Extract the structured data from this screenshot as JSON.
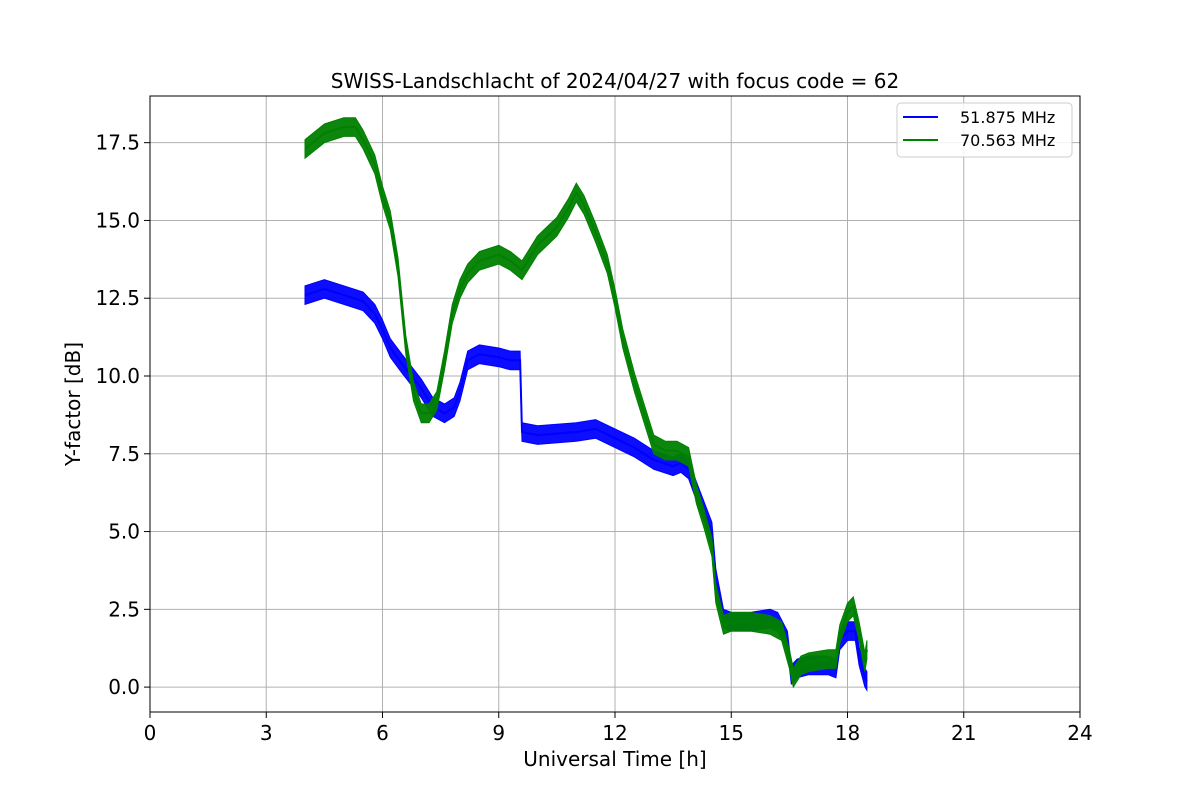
{
  "chart_data": {
    "type": "line",
    "title": "SWISS-Landschlacht of 2024/04/27 with focus code = 62",
    "xlabel": "Universal Time [h]",
    "ylabel": "Y-factor [dB]",
    "xlim": [
      0,
      24
    ],
    "ylim": [
      -0.8,
      19
    ],
    "xticks": [
      0,
      3,
      6,
      9,
      12,
      15,
      18,
      21,
      24
    ],
    "xtick_labels": [
      "0",
      "3",
      "6",
      "9",
      "12",
      "15",
      "18",
      "21",
      "24"
    ],
    "yticks": [
      0,
      2.5,
      5,
      7.5,
      10,
      12.5,
      15,
      17.5
    ],
    "ytick_labels": [
      "0.0",
      "2.5",
      "5.0",
      "7.5",
      "10.0",
      "12.5",
      "15.0",
      "17.5"
    ],
    "grid": true,
    "legend_position": "top-right",
    "series": [
      {
        "name": "51.875 MHz",
        "color": "#0000ff",
        "band": 0.3,
        "x": [
          4.0,
          4.5,
          5.0,
          5.5,
          5.8,
          6.0,
          6.2,
          6.5,
          7.0,
          7.3,
          7.6,
          7.85,
          8.0,
          8.2,
          8.5,
          9.0,
          9.3,
          9.55,
          9.6,
          10.0,
          11.0,
          11.5,
          12.0,
          12.5,
          13.0,
          13.5,
          13.7,
          13.9,
          14.1,
          14.5,
          14.6,
          14.8,
          15.0,
          15.5,
          16.0,
          16.2,
          16.45,
          16.55,
          16.7,
          17.0,
          17.5,
          17.7,
          17.8,
          18.0,
          18.2,
          18.3,
          18.45,
          18.5
        ],
        "y": [
          12.6,
          12.8,
          12.6,
          12.4,
          12.0,
          11.5,
          10.9,
          10.4,
          9.6,
          9.0,
          8.8,
          9.0,
          9.5,
          10.5,
          10.7,
          10.6,
          10.5,
          10.5,
          8.2,
          8.1,
          8.2,
          8.3,
          8.0,
          7.7,
          7.3,
          7.1,
          7.2,
          7.0,
          6.3,
          5.0,
          3.5,
          2.2,
          2.1,
          2.1,
          2.2,
          2.1,
          1.5,
          0.4,
          0.6,
          0.7,
          0.7,
          0.6,
          1.5,
          1.8,
          1.8,
          1.0,
          0.3,
          0.2
        ]
      },
      {
        "name": "70.563 MHz",
        "color": "#008000",
        "band": 0.3,
        "x": [
          4.0,
          4.5,
          5.0,
          5.3,
          5.5,
          5.8,
          6.0,
          6.2,
          6.4,
          6.6,
          6.8,
          7.0,
          7.2,
          7.4,
          7.6,
          7.8,
          8.0,
          8.2,
          8.5,
          9.0,
          9.3,
          9.6,
          9.8,
          10.0,
          10.5,
          10.8,
          11.0,
          11.2,
          11.5,
          11.8,
          12.0,
          12.2,
          12.5,
          12.8,
          13.0,
          13.3,
          13.6,
          13.9,
          14.1,
          14.3,
          14.5,
          14.6,
          14.8,
          15.0,
          15.5,
          16.0,
          16.3,
          16.5,
          16.6,
          16.8,
          17.0,
          17.5,
          17.7,
          17.8,
          18.0,
          18.15,
          18.3,
          18.45,
          18.5
        ],
        "y": [
          17.3,
          17.8,
          18.0,
          18.0,
          17.6,
          16.8,
          15.8,
          15.0,
          13.5,
          11.0,
          9.5,
          8.8,
          8.8,
          9.2,
          10.5,
          12.0,
          12.8,
          13.3,
          13.7,
          13.9,
          13.7,
          13.4,
          13.8,
          14.2,
          14.8,
          15.4,
          15.9,
          15.5,
          14.6,
          13.6,
          12.5,
          11.2,
          9.8,
          8.6,
          7.8,
          7.6,
          7.6,
          7.4,
          6.2,
          5.4,
          4.5,
          3.0,
          2.0,
          2.1,
          2.1,
          2.0,
          1.8,
          0.9,
          0.3,
          0.7,
          0.8,
          0.9,
          0.9,
          1.7,
          2.4,
          2.6,
          1.8,
          0.8,
          1.2
        ]
      }
    ]
  }
}
